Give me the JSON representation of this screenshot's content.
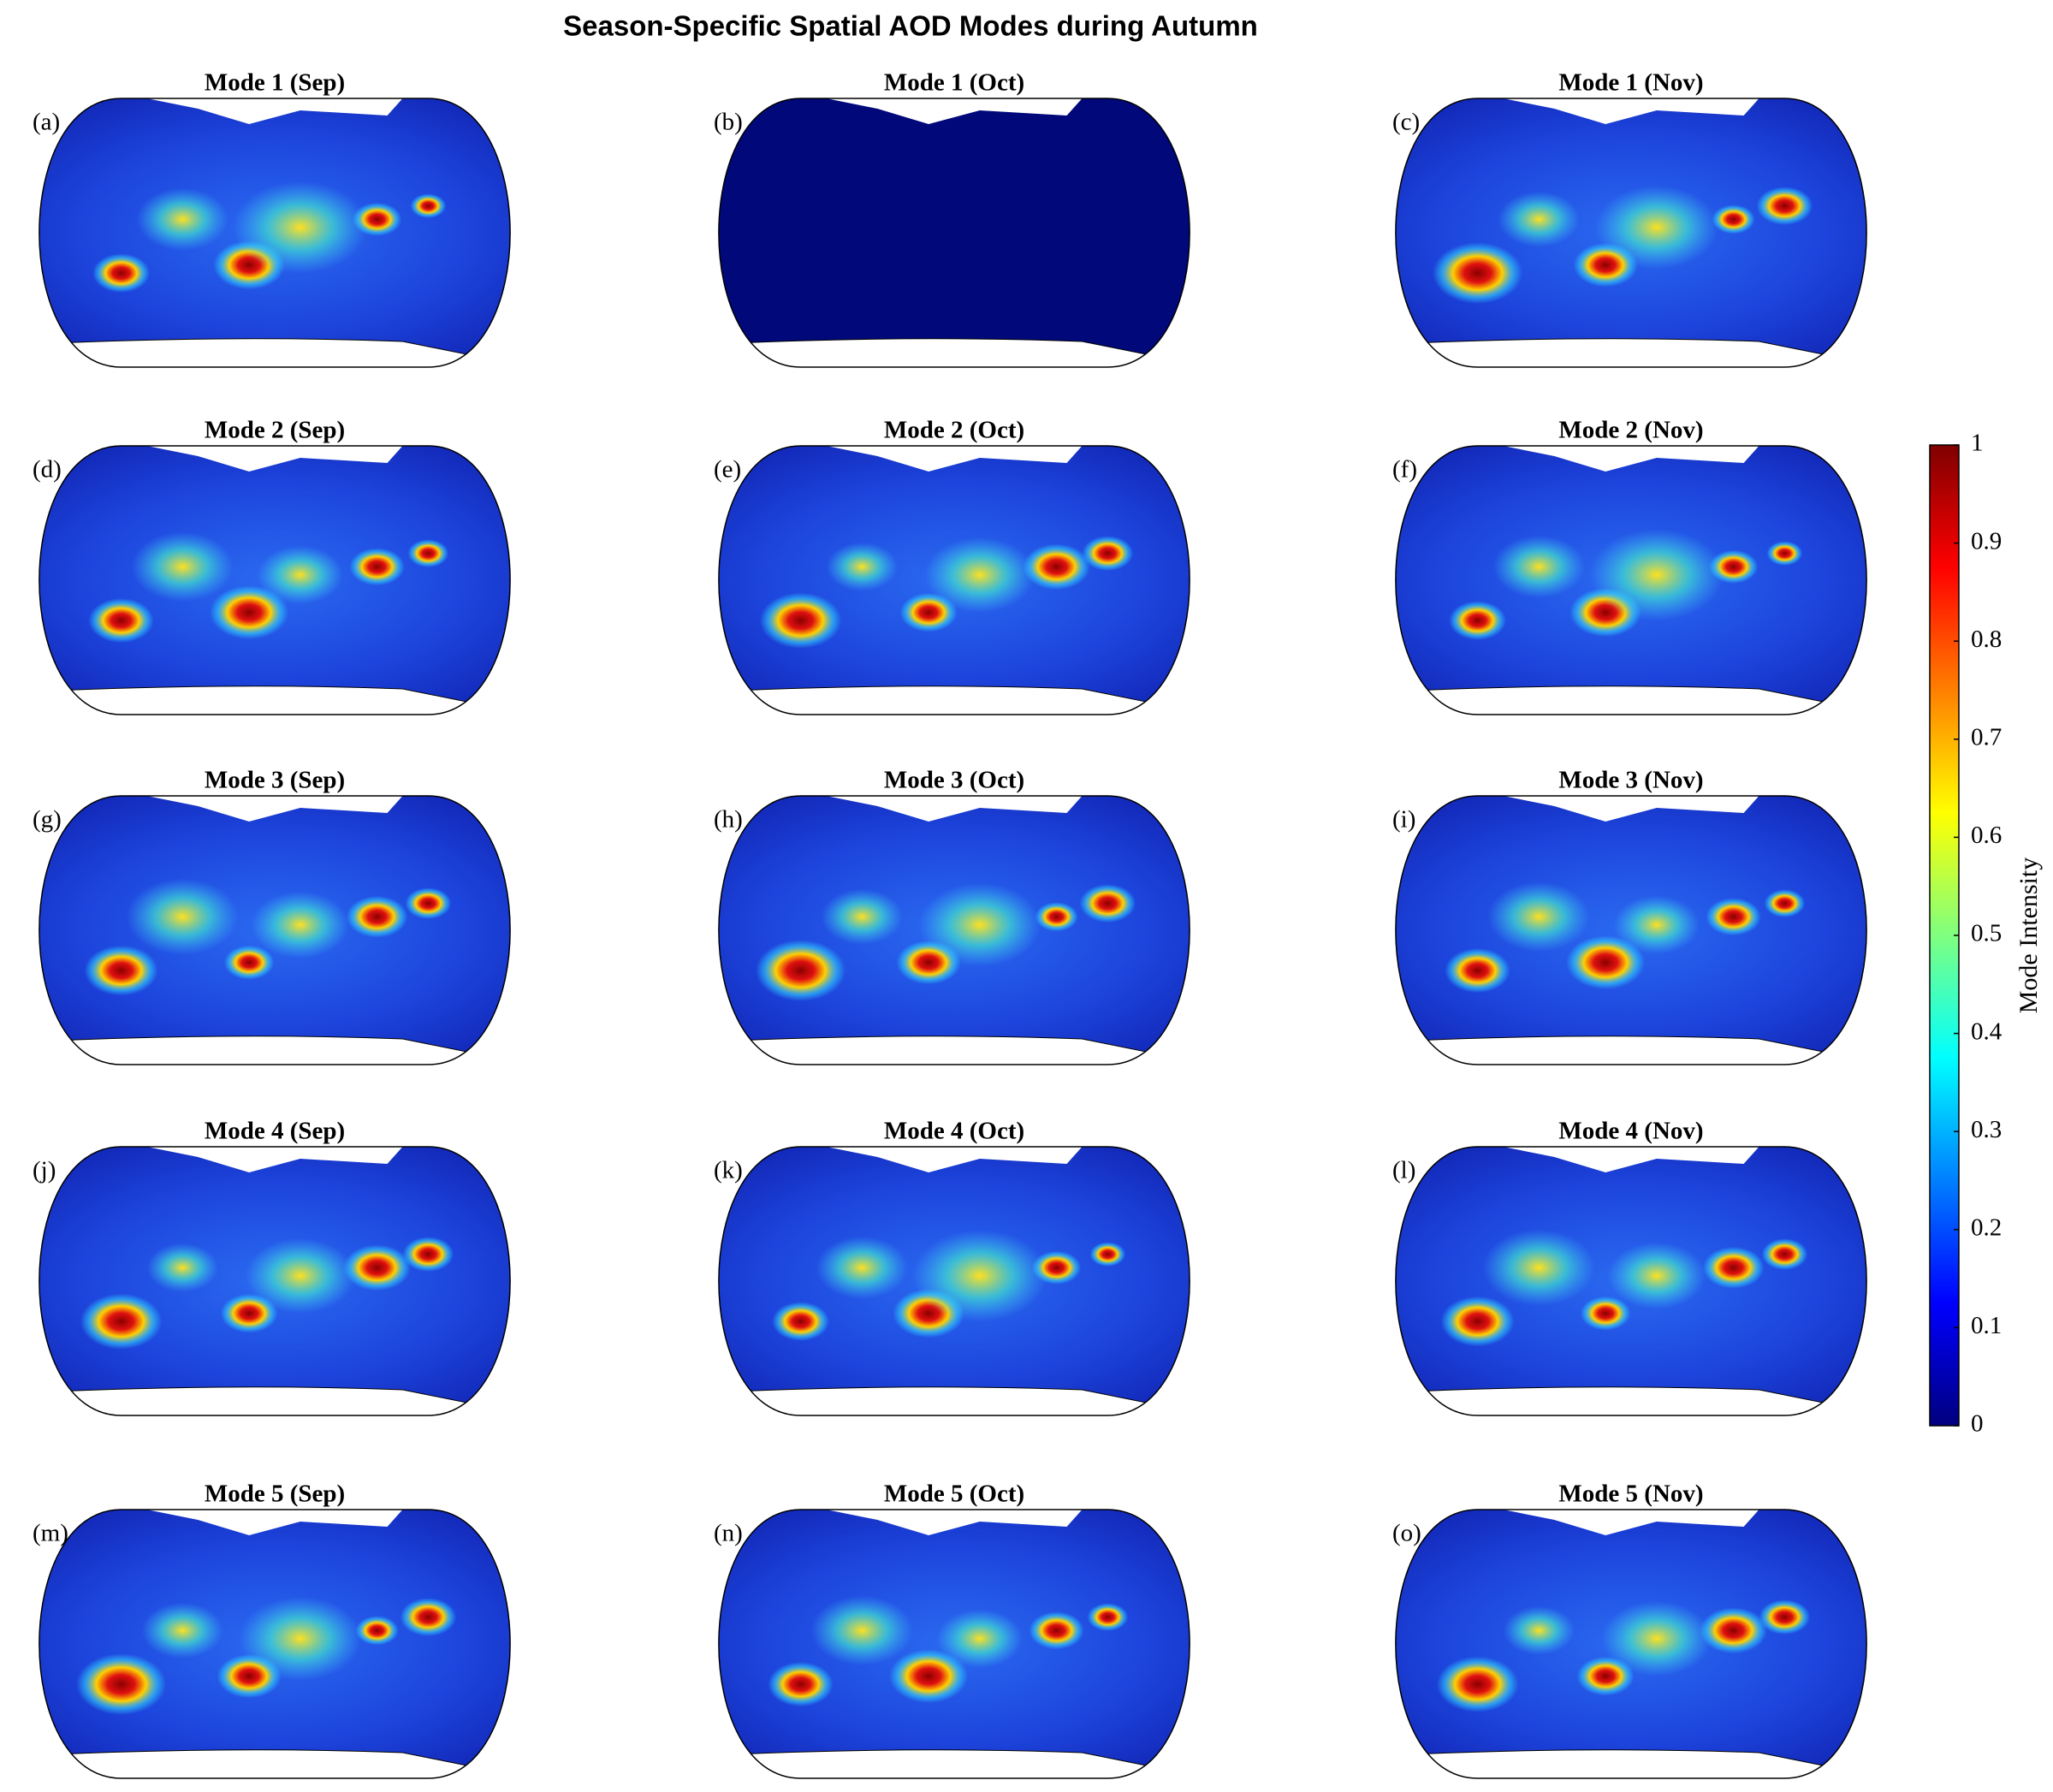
{
  "title": "Season-Specific Spatial AOD Modes during Autumn",
  "panels": [
    {
      "label": "(a)",
      "title": "Mode 1 (Sep)"
    },
    {
      "label": "(b)",
      "title": "Mode 1 (Oct)"
    },
    {
      "label": "(c)",
      "title": "Mode 1 (Nov)"
    },
    {
      "label": "(d)",
      "title": "Mode 2 (Sep)"
    },
    {
      "label": "(e)",
      "title": "Mode 2 (Oct)"
    },
    {
      "label": "(f)",
      "title": "Mode 2 (Nov)"
    },
    {
      "label": "(g)",
      "title": "Mode 3 (Sep)"
    },
    {
      "label": "(h)",
      "title": "Mode 3 (Oct)"
    },
    {
      "label": "(i)",
      "title": "Mode 3 (Nov)"
    },
    {
      "label": "(j)",
      "title": "Mode 4 (Sep)"
    },
    {
      "label": "(k)",
      "title": "Mode 4 (Oct)"
    },
    {
      "label": "(l)",
      "title": "Mode 4 (Nov)"
    },
    {
      "label": "(m)",
      "title": "Mode 5 (Sep)"
    },
    {
      "label": "(n)",
      "title": "Mode 5 (Oct)"
    },
    {
      "label": "(o)",
      "title": "Mode 5 (Nov)"
    }
  ],
  "colorbar": {
    "label": "Mode Intensity",
    "lim": [
      0,
      1
    ],
    "ticks": [
      0,
      0.1,
      0.2,
      0.3,
      0.4,
      0.5,
      0.6,
      0.7,
      0.8,
      0.9,
      1
    ],
    "colormap": "jet"
  }
}
